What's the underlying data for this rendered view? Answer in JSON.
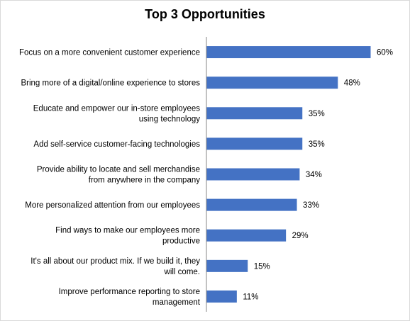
{
  "chart_data": {
    "type": "bar",
    "orientation": "horizontal",
    "title": "Top 3 Opportunities",
    "categories": [
      [
        "Focus on a more convenient customer experience"
      ],
      [
        "Bring more of a digital/online experience to stores"
      ],
      [
        "Educate and empower our in-store employees",
        "using technology"
      ],
      [
        "Add self-service customer-facing technologies"
      ],
      [
        "Provide ability to locate and sell merchandise",
        "from anywhere in the company"
      ],
      [
        "More personalized attention from our employees"
      ],
      [
        "Find ways to make our employees more",
        "productive"
      ],
      [
        "It's all about our product mix. If we build it, they",
        "will come."
      ],
      [
        "Improve performance reporting to store",
        "management"
      ]
    ],
    "values": [
      60,
      48,
      35,
      35,
      34,
      33,
      29,
      15,
      11
    ],
    "value_labels": [
      "60%",
      "48%",
      "35%",
      "35%",
      "34%",
      "33%",
      "29%",
      "15%",
      "11%"
    ],
    "unit": "%",
    "xlim": [
      0,
      60
    ],
    "bar_color": "#4472c4",
    "axis_color": "#868686",
    "grid": false,
    "legend": "none"
  }
}
